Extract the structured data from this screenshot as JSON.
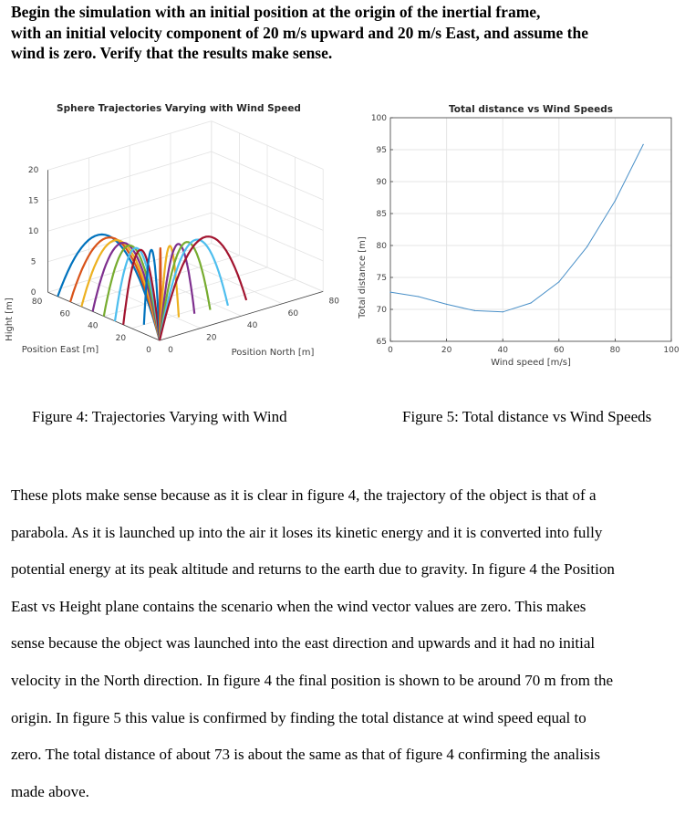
{
  "heading": [
    "Begin the simulation with an initial position at the origin of the inertial frame,",
    "with an initial velocity component of 20 m/s upward and 20 m/s East, and assume the",
    "wind is zero. Verify that the results make sense."
  ],
  "figure4": {
    "title": "Sphere Trajectories Varying with Wind Speed",
    "zlabel": "Hight [m]",
    "xlabel": "Position East [m]",
    "ylabel": "Position North [m]",
    "z_ticks": [
      "0",
      "5",
      "10",
      "15",
      "20"
    ],
    "east_ticks": [
      "80",
      "60",
      "40",
      "20",
      "0"
    ],
    "north_ticks": [
      "0",
      "20",
      "40",
      "60",
      "80"
    ],
    "caption": "Figure 4: Trajectories Varying with Wind"
  },
  "chart_data": {
    "type": "line",
    "title": "Total distance vs Wind Speeds",
    "xlabel": "Wind speed [m/s]",
    "ylabel": "Total distance [m]",
    "xlim": [
      0,
      100
    ],
    "ylim": [
      65,
      100
    ],
    "xticks": [
      "0",
      "20",
      "40",
      "60",
      "80",
      "100"
    ],
    "yticks": [
      "65",
      "70",
      "75",
      "80",
      "85",
      "90",
      "95",
      "100"
    ],
    "grid": true,
    "x": [
      0,
      10,
      20,
      30,
      40,
      50,
      60,
      70,
      80,
      90
    ],
    "y": [
      72.7,
      72.0,
      70.8,
      69.8,
      69.6,
      71.0,
      74.3,
      79.8,
      87.0,
      95.8
    ],
    "color": "#4a90c8"
  },
  "figure5": {
    "caption": "Figure 5: Total distance vs Wind Speeds"
  },
  "body": [
    "These plots make sense because as it is clear in figure 4, the trajectory of the object is that of a",
    "parabola. As it is launched up into the air it loses its kinetic energy and it is converted into fully",
    "potential energy at its peak altitude and returns to the earth due to gravity. In figure 4 the Position",
    "East vs Height plane contains the scenario when the wind vector values are zero. This makes",
    "sense because the object was launched into the east direction and upwards and it had no initial",
    "velocity in the North direction. In figure 4 the final position is shown to be around 70 m from the",
    "origin. In figure 5 this value is confirmed by finding the total distance at wind speed equal to",
    "zero. The total distance of about 73 is about the same as that of figure 4 confirming the analisis",
    "made above."
  ],
  "trajectory_colors": [
    "#0072bd",
    "#d95319",
    "#edb120",
    "#7e2f8e",
    "#77ac30",
    "#4dbeee",
    "#a2142f"
  ]
}
